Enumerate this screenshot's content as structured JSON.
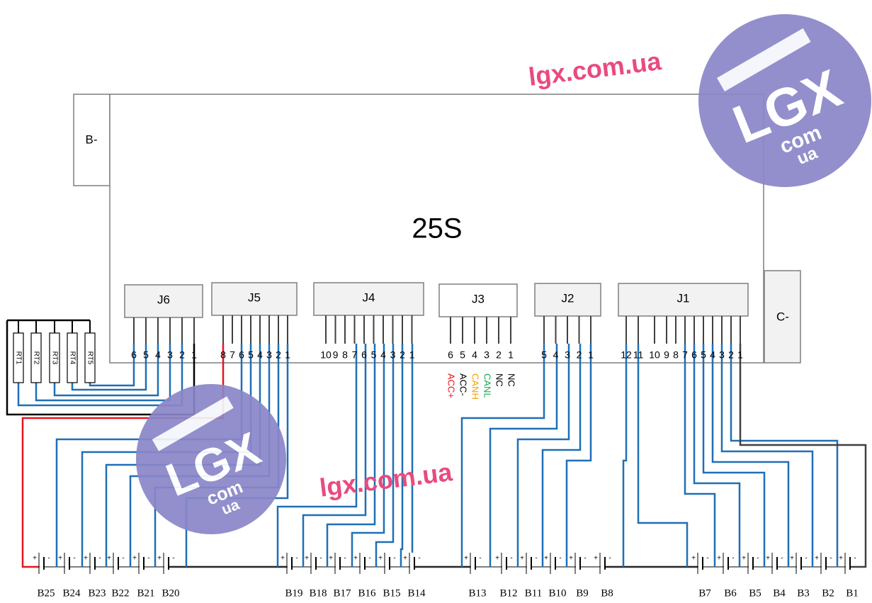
{
  "logo_text": {
    "site": "lgx.com.ua",
    "brand": "LGX",
    "com": "com",
    "ua": "ua"
  },
  "board": {
    "title": "25S",
    "b_minus": "B-",
    "c_minus": "C-"
  },
  "connectors": [
    {
      "name": "J6",
      "pins": [
        "6",
        "5",
        "4",
        "3",
        "2",
        "1"
      ]
    },
    {
      "name": "J5",
      "pins": [
        "8",
        "7",
        "6",
        "5",
        "4",
        "3",
        "2",
        "1"
      ]
    },
    {
      "name": "J4",
      "pins": [
        "10",
        "9",
        "8",
        "7",
        "6",
        "5",
        "4",
        "3",
        "2",
        "1"
      ]
    },
    {
      "name": "J3",
      "pins": [
        "6",
        "5",
        "4",
        "3",
        "2",
        "1"
      ]
    },
    {
      "name": "J2",
      "pins": [
        "5",
        "4",
        "3",
        "2",
        "1"
      ]
    },
    {
      "name": "J1",
      "pins": [
        "12",
        "11",
        "10",
        "9",
        "8",
        "7",
        "6",
        "5",
        "4",
        "3",
        "2",
        "1"
      ]
    }
  ],
  "signals": [
    "ACC+",
    "ACC-",
    "CANH",
    "CANL",
    "NC",
    "NC"
  ],
  "thermistors": [
    "RT1",
    "RT2",
    "RT3",
    "RT4",
    "RT5"
  ],
  "batteries": [
    "B25",
    "B24",
    "B23",
    "B22",
    "B21",
    "B20",
    "B19",
    "B18",
    "B17",
    "B16",
    "B15",
    "B14",
    "B13",
    "B12",
    "B11",
    "B10",
    "B9",
    "B8",
    "B7",
    "B6",
    "B5",
    "B4",
    "B3",
    "B2",
    "B1"
  ],
  "polarity": {
    "plus": "+",
    "minus": "-"
  }
}
